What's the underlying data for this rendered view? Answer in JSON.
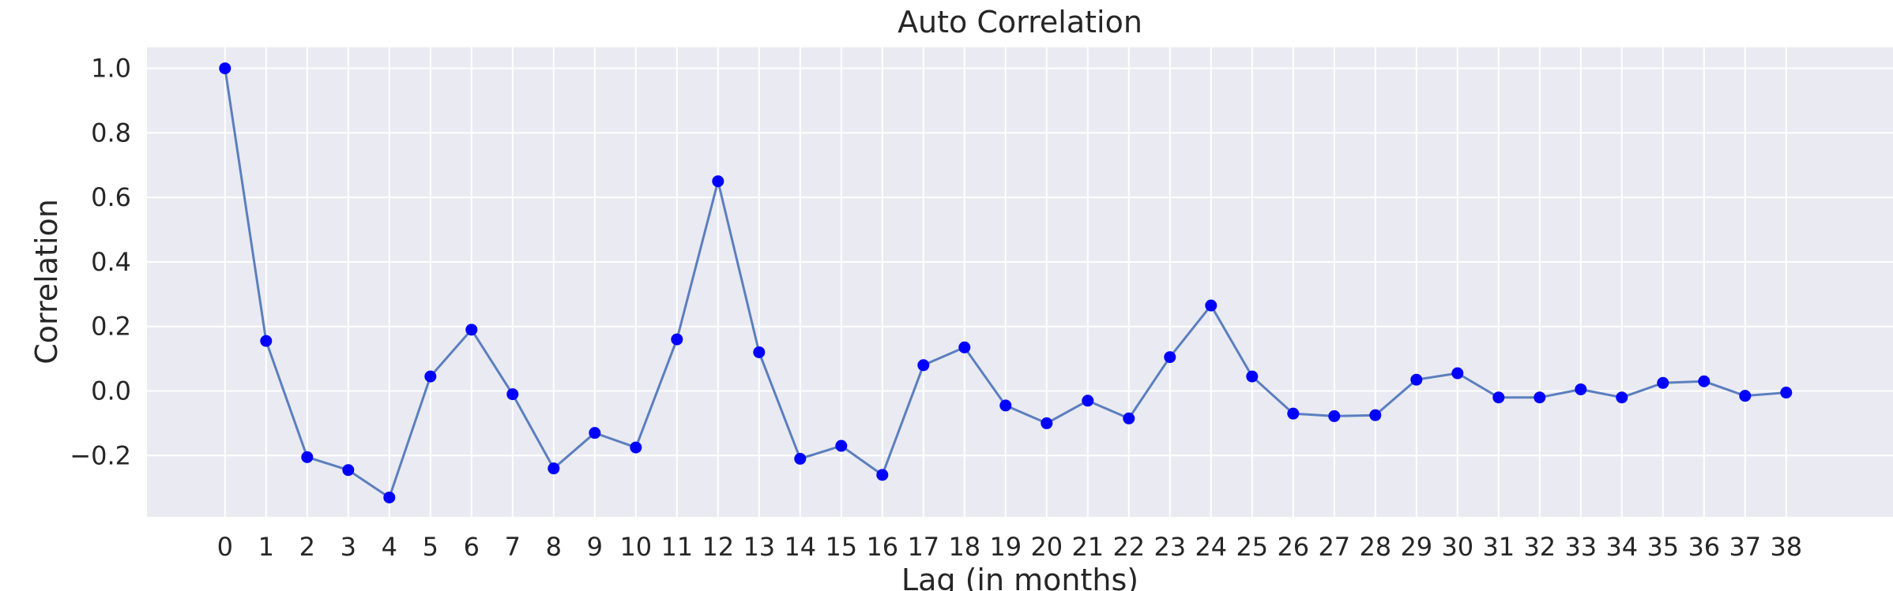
{
  "chart_data": {
    "type": "line",
    "title": "Auto Correlation",
    "xlabel": "Lag (in months)",
    "ylabel": "Correlation",
    "x": [
      0,
      1,
      2,
      3,
      4,
      5,
      6,
      7,
      8,
      9,
      10,
      11,
      12,
      13,
      14,
      15,
      16,
      17,
      18,
      19,
      20,
      21,
      22,
      23,
      24,
      25,
      26,
      27,
      28,
      29,
      30,
      31,
      32,
      33,
      34,
      35,
      36,
      37,
      38
    ],
    "x_tick_labels": [
      "0",
      "1",
      "2",
      "3",
      "4",
      "5",
      "6",
      "7",
      "8",
      "9",
      "10",
      "11",
      "12",
      "13",
      "14",
      "15",
      "16",
      "17",
      "18",
      "19",
      "20",
      "21",
      "22",
      "23",
      "24",
      "25",
      "26",
      "27",
      "28",
      "29",
      "30",
      "31",
      "32",
      "33",
      "34",
      "35",
      "36",
      "37",
      "38"
    ],
    "y_ticks": [
      -0.2,
      0.0,
      0.2,
      0.4,
      0.6,
      0.8,
      1.0
    ],
    "y_tick_labels": [
      "−0.2",
      "0.0",
      "0.2",
      "0.4",
      "0.6",
      "0.8",
      "1.0"
    ],
    "xlim": [
      -1.9,
      40.6
    ],
    "ylim": [
      -0.39,
      1.065
    ],
    "grid": true,
    "series": [
      {
        "values": [
          1.0,
          0.155,
          -0.205,
          -0.245,
          -0.33,
          0.045,
          0.19,
          -0.01,
          -0.24,
          -0.13,
          -0.175,
          0.16,
          0.65,
          0.12,
          -0.21,
          -0.17,
          -0.26,
          0.08,
          0.135,
          -0.045,
          -0.1,
          -0.03,
          -0.085,
          0.105,
          0.265,
          0.045,
          -0.07,
          -0.078,
          -0.075,
          0.035,
          0.055,
          -0.02,
          -0.02,
          0.005,
          -0.02,
          0.025,
          0.03,
          -0.015,
          -0.005
        ],
        "line_color": "#5b7fbe",
        "marker_color": "#0000ff"
      }
    ],
    "background_color": "#eaeaf2",
    "grid_color": "#ffffff"
  }
}
